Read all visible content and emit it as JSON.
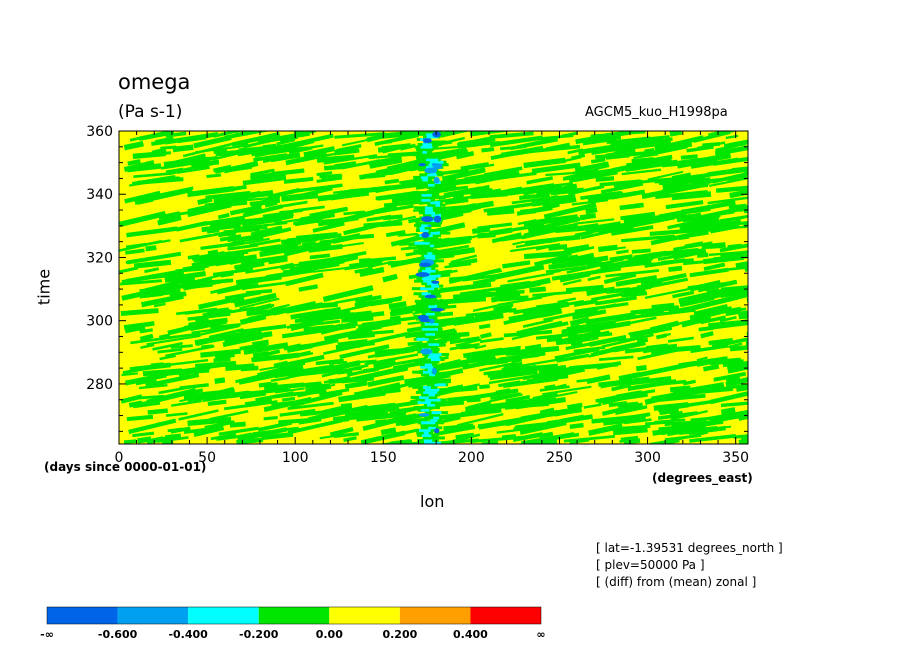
{
  "header": {
    "title": "omega",
    "units": "(Pa s-1)",
    "model": "AGCM5_kuo_H1998pa"
  },
  "notes": [
    "[ lat=-1.39531 degrees_north ]",
    "[ plev=50000 Pa ]",
    "[ (diff) from (mean) zonal ]"
  ],
  "chart_data": {
    "type": "heatmap",
    "title": "omega",
    "subtitle": "(Pa s-1)",
    "xlabel": "lon",
    "x_units": "(degrees_east)",
    "ylabel": "time",
    "y_units": "(days since 0000-01-01)",
    "xlim": [
      0,
      357
    ],
    "ylim": [
      261,
      360
    ],
    "x_ticks": [
      0,
      50,
      100,
      150,
      200,
      250,
      300,
      350
    ],
    "x_tick_labels": [
      "0",
      "50",
      "100",
      "150",
      "200",
      "250",
      "300",
      "350"
    ],
    "y_ticks": [
      280,
      300,
      320,
      340,
      360
    ],
    "y_tick_labels": [
      "280",
      "300",
      "320",
      "340",
      "360"
    ],
    "grid": false,
    "colorbar": {
      "colors": [
        "#0064e6",
        "#00a0f0",
        "#00ffff",
        "#00e600",
        "#ffff00",
        "#ffa000",
        "#ff0000"
      ],
      "labels": [
        "-∞",
        "-0.600",
        "-0.400",
        "-0.200",
        "0.00",
        "0.200",
        "0.400",
        "∞"
      ]
    },
    "dominant_levels": [
      "-0.200 to 0.00",
      "0.00 to 0.200"
    ],
    "negative_band": {
      "lon_center": 177,
      "lon_width": 14,
      "levels": [
        "-0.600 to -0.400",
        "-0.400 to -0.200"
      ]
    }
  }
}
